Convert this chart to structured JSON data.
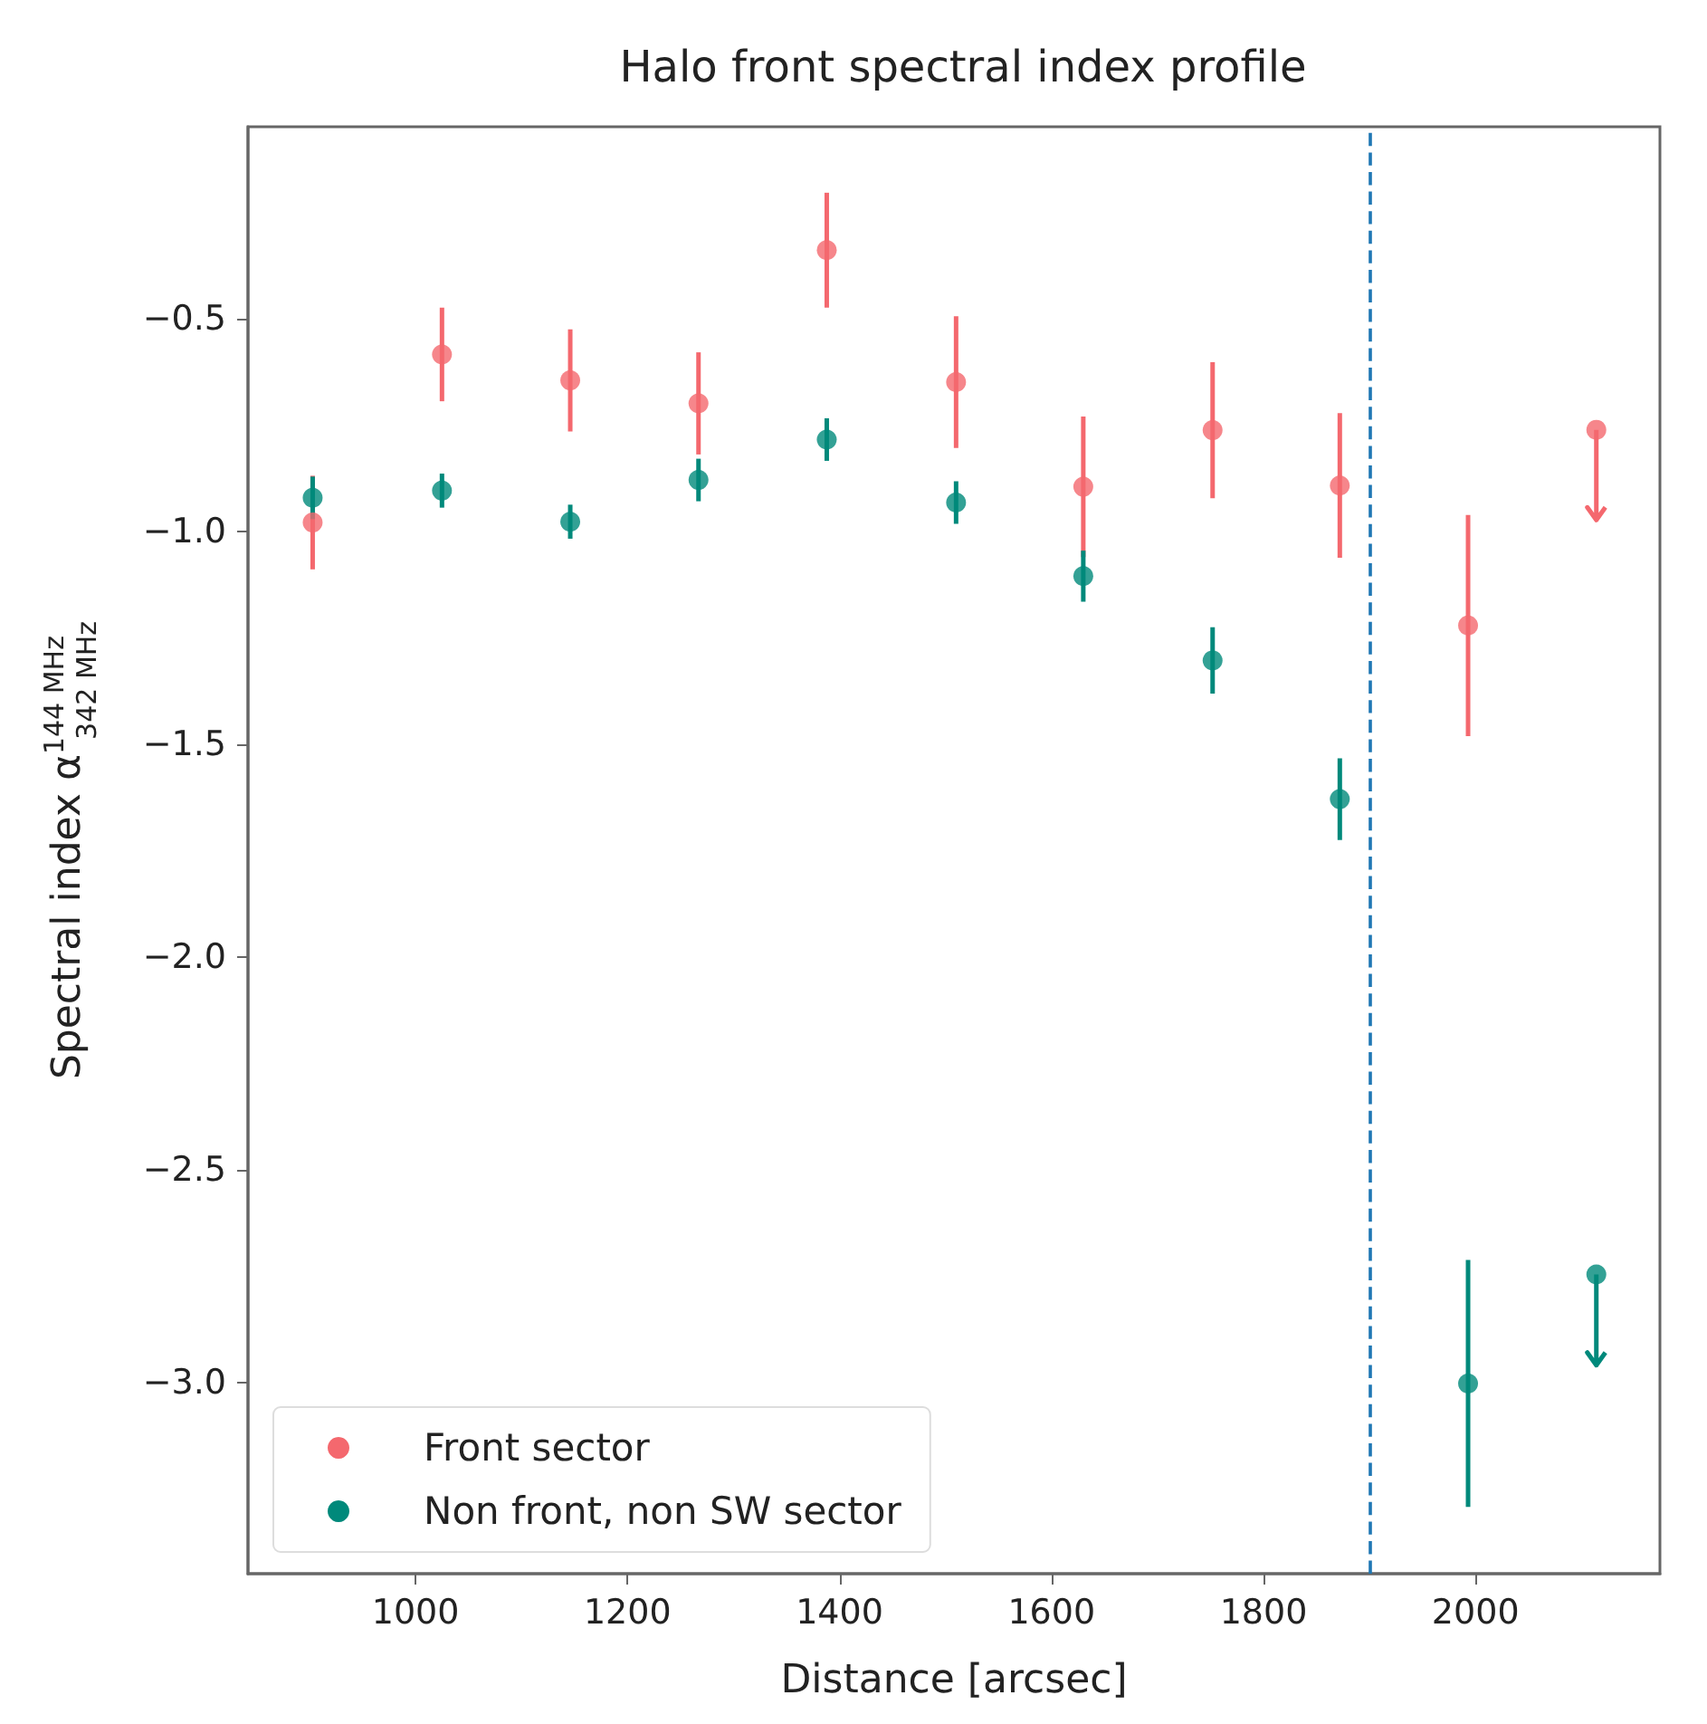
{
  "chart_data": {
    "type": "scatter",
    "title": "Halo front spectral index profile",
    "xlabel": "Distance [arcsec]",
    "ylabel": "Spectral index α$^{144 MHz}$$_{342 MHz}$",
    "x": [
      903,
      1025,
      1146,
      1267,
      1388,
      1510,
      1630,
      1752,
      1872,
      1993,
      2114
    ],
    "series": [
      {
        "name": "Front sector",
        "color": "#f4686e",
        "values": [
          -0.98,
          -0.585,
          -0.646,
          -0.7,
          -0.34,
          -0.65,
          -0.896,
          -0.763,
          -0.893,
          -1.222,
          -0.762
        ],
        "errors": [
          0.11,
          0.11,
          0.12,
          0.12,
          0.135,
          0.155,
          0.165,
          0.16,
          0.17,
          0.26,
          [
            -0.974,
            -0.762
          ]
        ]
      },
      {
        "name": "Non front, non SW sector",
        "color": "#00897b",
        "values": [
          -0.922,
          -0.905,
          -0.978,
          -0.88,
          -0.785,
          -0.933,
          -1.106,
          -1.304,
          -1.63,
          -3.003,
          -2.747
        ],
        "errors": [
          0.05,
          0.04,
          0.04,
          0.05,
          0.05,
          0.05,
          0.06,
          0.078,
          0.096,
          0.29,
          [
            -2.96,
            -2.747
          ]
        ]
      }
    ],
    "xlim": [
      842,
      2174
    ],
    "xticks": [
      1000,
      1200,
      1400,
      1600,
      1800,
      2000
    ],
    "ylim": [
      -3.45,
      -0.05
    ],
    "yticks": [
      {
        "value": -3.0,
        "label": "−3.0"
      },
      {
        "value": -2.5,
        "label": "−2.5"
      },
      {
        "value": -2.0,
        "label": "−2.0"
      },
      {
        "value": -1.5,
        "label": "−1.5"
      },
      {
        "value": -1.0,
        "label": "−1.0"
      },
      {
        "value": -0.5,
        "label": "−0.5"
      }
    ],
    "ref_lines": [
      {
        "axis": "x",
        "value": 1900,
        "color": "#1f77b4",
        "line_style": "dashed"
      }
    ],
    "grid": false,
    "legend": "bottom left",
    "marker": "circle"
  }
}
